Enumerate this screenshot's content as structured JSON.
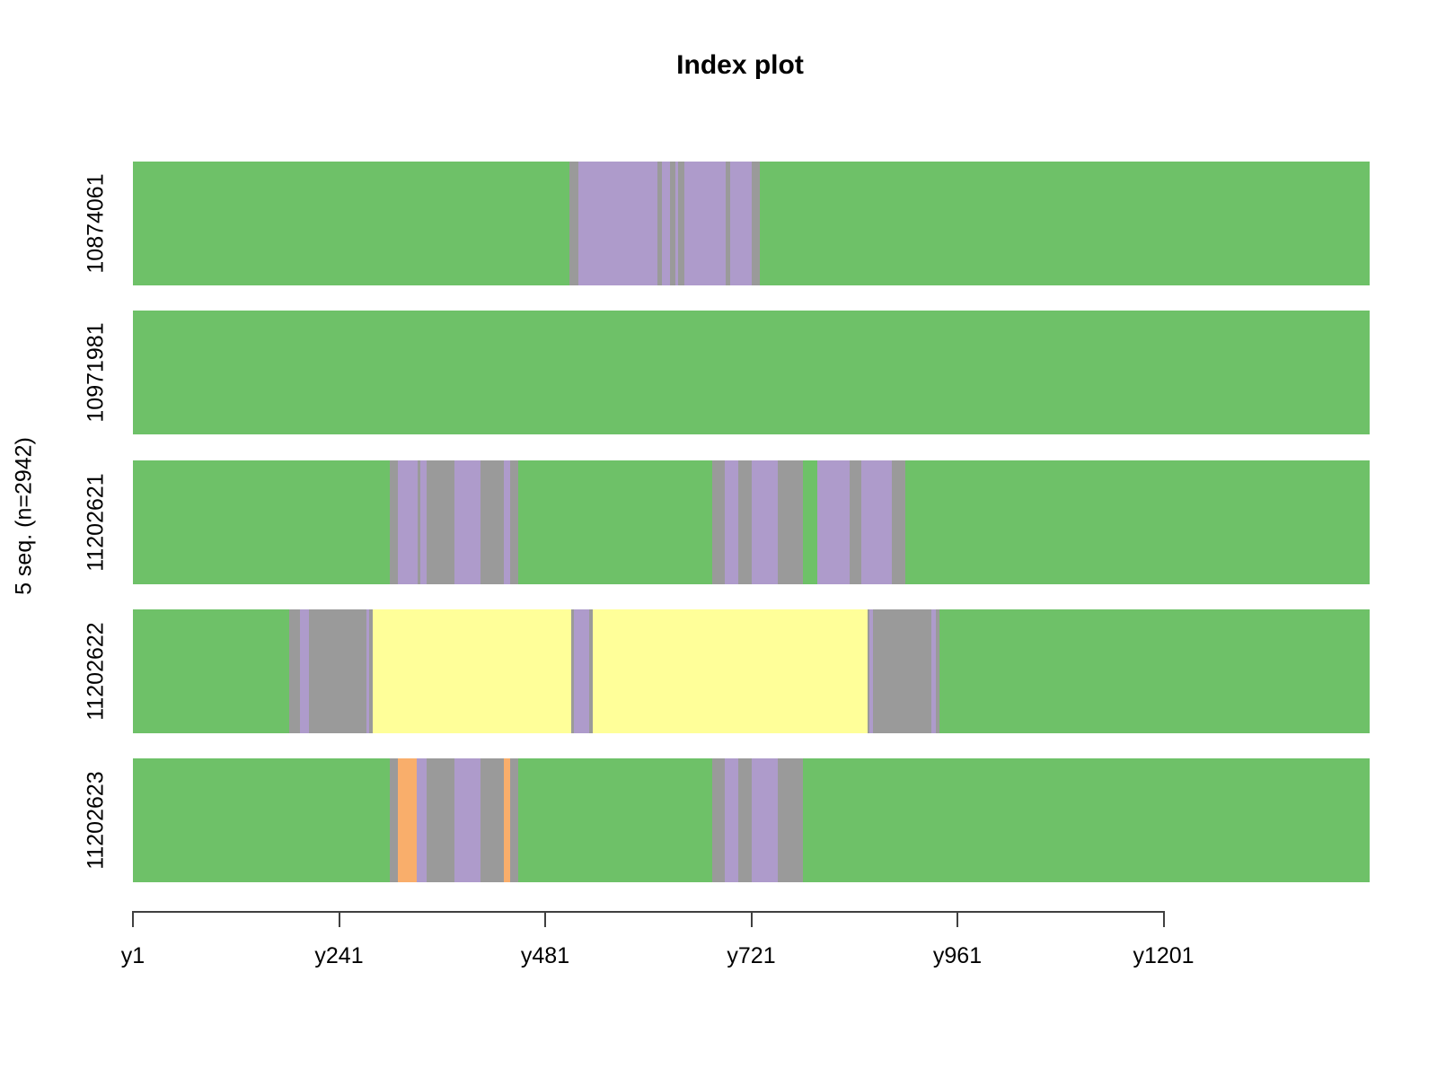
{
  "title": "Index plot",
  "y_axis_label": "5 seq. (n=2942)",
  "chart_data": {
    "type": "bar",
    "subtype": "sequence-index-plot",
    "orientation": "horizontal-stacked",
    "title": "Index plot",
    "ylabel": "5 seq. (n=2942)",
    "num_sequences": 5,
    "n_total": 2942,
    "x_domain": [
      1,
      1441
    ],
    "grid": false,
    "legend": "none",
    "x_ticks": [
      {
        "label": "y1",
        "at": 1
      },
      {
        "label": "y241",
        "at": 241
      },
      {
        "label": "y481",
        "at": 481
      },
      {
        "label": "y721",
        "at": 721
      },
      {
        "label": "y961",
        "at": 961
      },
      {
        "label": "y1201",
        "at": 1201
      }
    ],
    "states": {
      "green": "#6ec168",
      "purple": "#ae9bcb",
      "gray": "#9a9a9a",
      "yellow": "#ffff99",
      "orange": "#f9ae6b"
    },
    "rows": [
      {
        "label": "10874061",
        "segments": [
          {
            "state": "green",
            "from": 1,
            "to": 509
          },
          {
            "state": "gray",
            "from": 509,
            "to": 520
          },
          {
            "state": "purple",
            "from": 520,
            "to": 612
          },
          {
            "state": "gray",
            "from": 612,
            "to": 617
          },
          {
            "state": "purple",
            "from": 617,
            "to": 626
          },
          {
            "state": "gray",
            "from": 626,
            "to": 633
          },
          {
            "state": "purple",
            "from": 633,
            "to": 636
          },
          {
            "state": "gray",
            "from": 636,
            "to": 643
          },
          {
            "state": "purple",
            "from": 643,
            "to": 691
          },
          {
            "state": "gray",
            "from": 691,
            "to": 696
          },
          {
            "state": "purple",
            "from": 696,
            "to": 721
          },
          {
            "state": "gray",
            "from": 721,
            "to": 731
          },
          {
            "state": "green",
            "from": 731,
            "to": 1441
          }
        ]
      },
      {
        "label": "10971981",
        "segments": [
          {
            "state": "green",
            "from": 1,
            "to": 1441
          }
        ]
      },
      {
        "label": "11202621",
        "segments": [
          {
            "state": "green",
            "from": 1,
            "to": 300
          },
          {
            "state": "gray",
            "from": 300,
            "to": 309
          },
          {
            "state": "purple",
            "from": 309,
            "to": 332
          },
          {
            "state": "gray",
            "from": 332,
            "to": 336
          },
          {
            "state": "purple",
            "from": 336,
            "to": 343
          },
          {
            "state": "gray",
            "from": 343,
            "to": 375
          },
          {
            "state": "purple",
            "from": 375,
            "to": 406
          },
          {
            "state": "gray",
            "from": 406,
            "to": 433
          },
          {
            "state": "purple",
            "from": 433,
            "to": 440
          },
          {
            "state": "gray",
            "from": 440,
            "to": 450
          },
          {
            "state": "green",
            "from": 450,
            "to": 676
          },
          {
            "state": "gray",
            "from": 676,
            "to": 690
          },
          {
            "state": "purple",
            "from": 690,
            "to": 706
          },
          {
            "state": "gray",
            "from": 706,
            "to": 721
          },
          {
            "state": "purple",
            "from": 721,
            "to": 752
          },
          {
            "state": "gray",
            "from": 752,
            "to": 781
          },
          {
            "state": "green",
            "from": 781,
            "to": 798
          },
          {
            "state": "purple",
            "from": 798,
            "to": 836
          },
          {
            "state": "gray",
            "from": 836,
            "to": 849
          },
          {
            "state": "purple",
            "from": 849,
            "to": 885
          },
          {
            "state": "gray",
            "from": 885,
            "to": 900
          },
          {
            "state": "green",
            "from": 900,
            "to": 1441
          }
        ]
      },
      {
        "label": "11202622",
        "segments": [
          {
            "state": "green",
            "from": 1,
            "to": 183
          },
          {
            "state": "gray",
            "from": 183,
            "to": 195
          },
          {
            "state": "purple",
            "from": 195,
            "to": 206
          },
          {
            "state": "gray",
            "from": 206,
            "to": 273
          },
          {
            "state": "purple",
            "from": 273,
            "to": 276
          },
          {
            "state": "gray",
            "from": 276,
            "to": 280
          },
          {
            "state": "yellow",
            "from": 280,
            "to": 511
          },
          {
            "state": "gray",
            "from": 511,
            "to": 514
          },
          {
            "state": "purple",
            "from": 514,
            "to": 532
          },
          {
            "state": "gray",
            "from": 532,
            "to": 536
          },
          {
            "state": "yellow",
            "from": 536,
            "to": 856
          },
          {
            "state": "gray",
            "from": 856,
            "to": 859
          },
          {
            "state": "purple",
            "from": 859,
            "to": 863
          },
          {
            "state": "gray",
            "from": 863,
            "to": 931
          },
          {
            "state": "purple",
            "from": 931,
            "to": 936
          },
          {
            "state": "gray",
            "from": 936,
            "to": 940
          },
          {
            "state": "green",
            "from": 940,
            "to": 1441
          }
        ]
      },
      {
        "label": "11202623",
        "segments": [
          {
            "state": "green",
            "from": 1,
            "to": 300
          },
          {
            "state": "gray",
            "from": 300,
            "to": 309
          },
          {
            "state": "orange",
            "from": 309,
            "to": 331
          },
          {
            "state": "purple",
            "from": 331,
            "to": 343
          },
          {
            "state": "gray",
            "from": 343,
            "to": 375
          },
          {
            "state": "purple",
            "from": 375,
            "to": 406
          },
          {
            "state": "gray",
            "from": 406,
            "to": 433
          },
          {
            "state": "orange",
            "from": 433,
            "to": 440
          },
          {
            "state": "gray",
            "from": 440,
            "to": 450
          },
          {
            "state": "green",
            "from": 450,
            "to": 676
          },
          {
            "state": "gray",
            "from": 676,
            "to": 690
          },
          {
            "state": "purple",
            "from": 690,
            "to": 706
          },
          {
            "state": "gray",
            "from": 706,
            "to": 721
          },
          {
            "state": "purple",
            "from": 721,
            "to": 752
          },
          {
            "state": "gray",
            "from": 752,
            "to": 781
          },
          {
            "state": "green",
            "from": 781,
            "to": 1441
          }
        ]
      }
    ]
  }
}
